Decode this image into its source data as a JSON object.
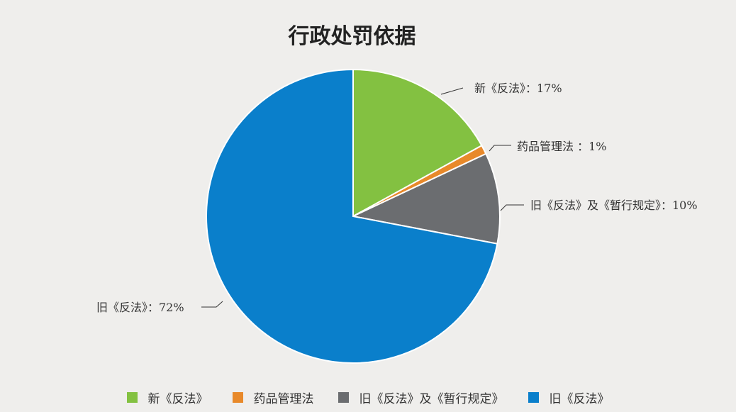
{
  "chart_data": {
    "type": "pie",
    "title": "行政处罚依据",
    "slices": [
      {
        "name": "新《反法》",
        "value": 17,
        "label": "新《反法》：17%",
        "color": "#83c141"
      },
      {
        "name": "药品管理法",
        "value": 1,
        "label": "药品管理法 ：1%",
        "color": "#e8892a"
      },
      {
        "name": "旧《反法》及《暂行规定》",
        "value": 10,
        "label": "旧《反法》及《暂行规定》：10%",
        "color": "#6b6d70"
      },
      {
        "name": "旧《反法》",
        "value": 72,
        "label": "旧《反法》：72%",
        "color": "#0a7fcb"
      }
    ],
    "legend_position": "bottom"
  }
}
